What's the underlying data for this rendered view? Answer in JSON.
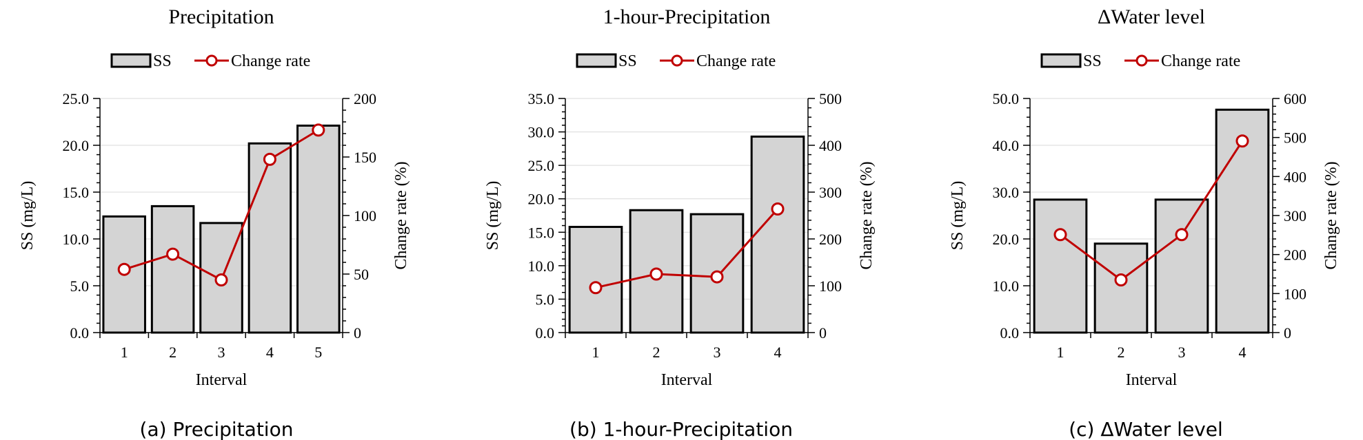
{
  "chart_data": [
    {
      "type": "bar",
      "title": "Precipitation",
      "caption": "(a) Precipitation",
      "xlabel": "Interval",
      "ylabel": "SS (mg/L)",
      "y2label": "Change rate (%)",
      "categories": [
        "1",
        "2",
        "3",
        "4",
        "5"
      ],
      "ylim": [
        0,
        25
      ],
      "y2lim": [
        0,
        200
      ],
      "yticks": [
        "0.0",
        "5.0",
        "10.0",
        "15.0",
        "20.0",
        "25.0"
      ],
      "y2ticks": [
        "0",
        "50",
        "100",
        "150",
        "200"
      ],
      "legend": {
        "position": "top",
        "bar_label": "SS",
        "line_label": "Change rate"
      },
      "grid": true,
      "series": [
        {
          "name": "SS",
          "kind": "bar",
          "axis": "left",
          "values": [
            12.4,
            13.5,
            11.7,
            20.2,
            22.1
          ],
          "color": "#d4d4d4"
        },
        {
          "name": "Change rate",
          "kind": "line",
          "axis": "right",
          "values": [
            54,
            67,
            45,
            148,
            173
          ],
          "color": "#c00000"
        }
      ]
    },
    {
      "type": "bar",
      "title": "1-hour-Precipitation",
      "caption": "(b) 1-hour-Precipitation",
      "xlabel": "Interval",
      "ylabel": "SS (mg/L)",
      "y2label": "Change rate (%)",
      "categories": [
        "1",
        "2",
        "3",
        "4"
      ],
      "ylim": [
        0,
        35
      ],
      "y2lim": [
        0,
        500
      ],
      "yticks": [
        "0.0",
        "5.0",
        "10.0",
        "15.0",
        "20.0",
        "25.0",
        "30.0",
        "35.0"
      ],
      "y2ticks": [
        "0",
        "100",
        "200",
        "300",
        "400",
        "500"
      ],
      "legend": {
        "position": "top",
        "bar_label": "SS",
        "line_label": "Change rate"
      },
      "grid": true,
      "series": [
        {
          "name": "SS",
          "kind": "bar",
          "axis": "left",
          "values": [
            15.8,
            18.3,
            17.7,
            29.3
          ],
          "color": "#d4d4d4"
        },
        {
          "name": "Change rate",
          "kind": "line",
          "axis": "right",
          "values": [
            96,
            125,
            119,
            264
          ],
          "color": "#c00000"
        }
      ]
    },
    {
      "type": "bar",
      "title": "ΔWater level",
      "caption": "(c) ΔWater level",
      "xlabel": "Interval",
      "ylabel": "SS (mg/L)",
      "y2label": "Change rate (%)",
      "categories": [
        "1",
        "2",
        "3",
        "4"
      ],
      "ylim": [
        0,
        50
      ],
      "y2lim": [
        0,
        600
      ],
      "yticks": [
        "0.0",
        "10.0",
        "20.0",
        "30.0",
        "40.0",
        "50.0"
      ],
      "y2ticks": [
        "0",
        "100",
        "200",
        "300",
        "400",
        "500",
        "600"
      ],
      "legend": {
        "position": "top",
        "bar_label": "SS",
        "line_label": "Change rate"
      },
      "grid": true,
      "series": [
        {
          "name": "SS",
          "kind": "bar",
          "axis": "left",
          "values": [
            28.4,
            19.0,
            28.4,
            47.6
          ],
          "color": "#d4d4d4"
        },
        {
          "name": "Change rate",
          "kind": "line",
          "axis": "right",
          "values": [
            251,
            135,
            251,
            491
          ],
          "color": "#c00000"
        }
      ]
    }
  ]
}
